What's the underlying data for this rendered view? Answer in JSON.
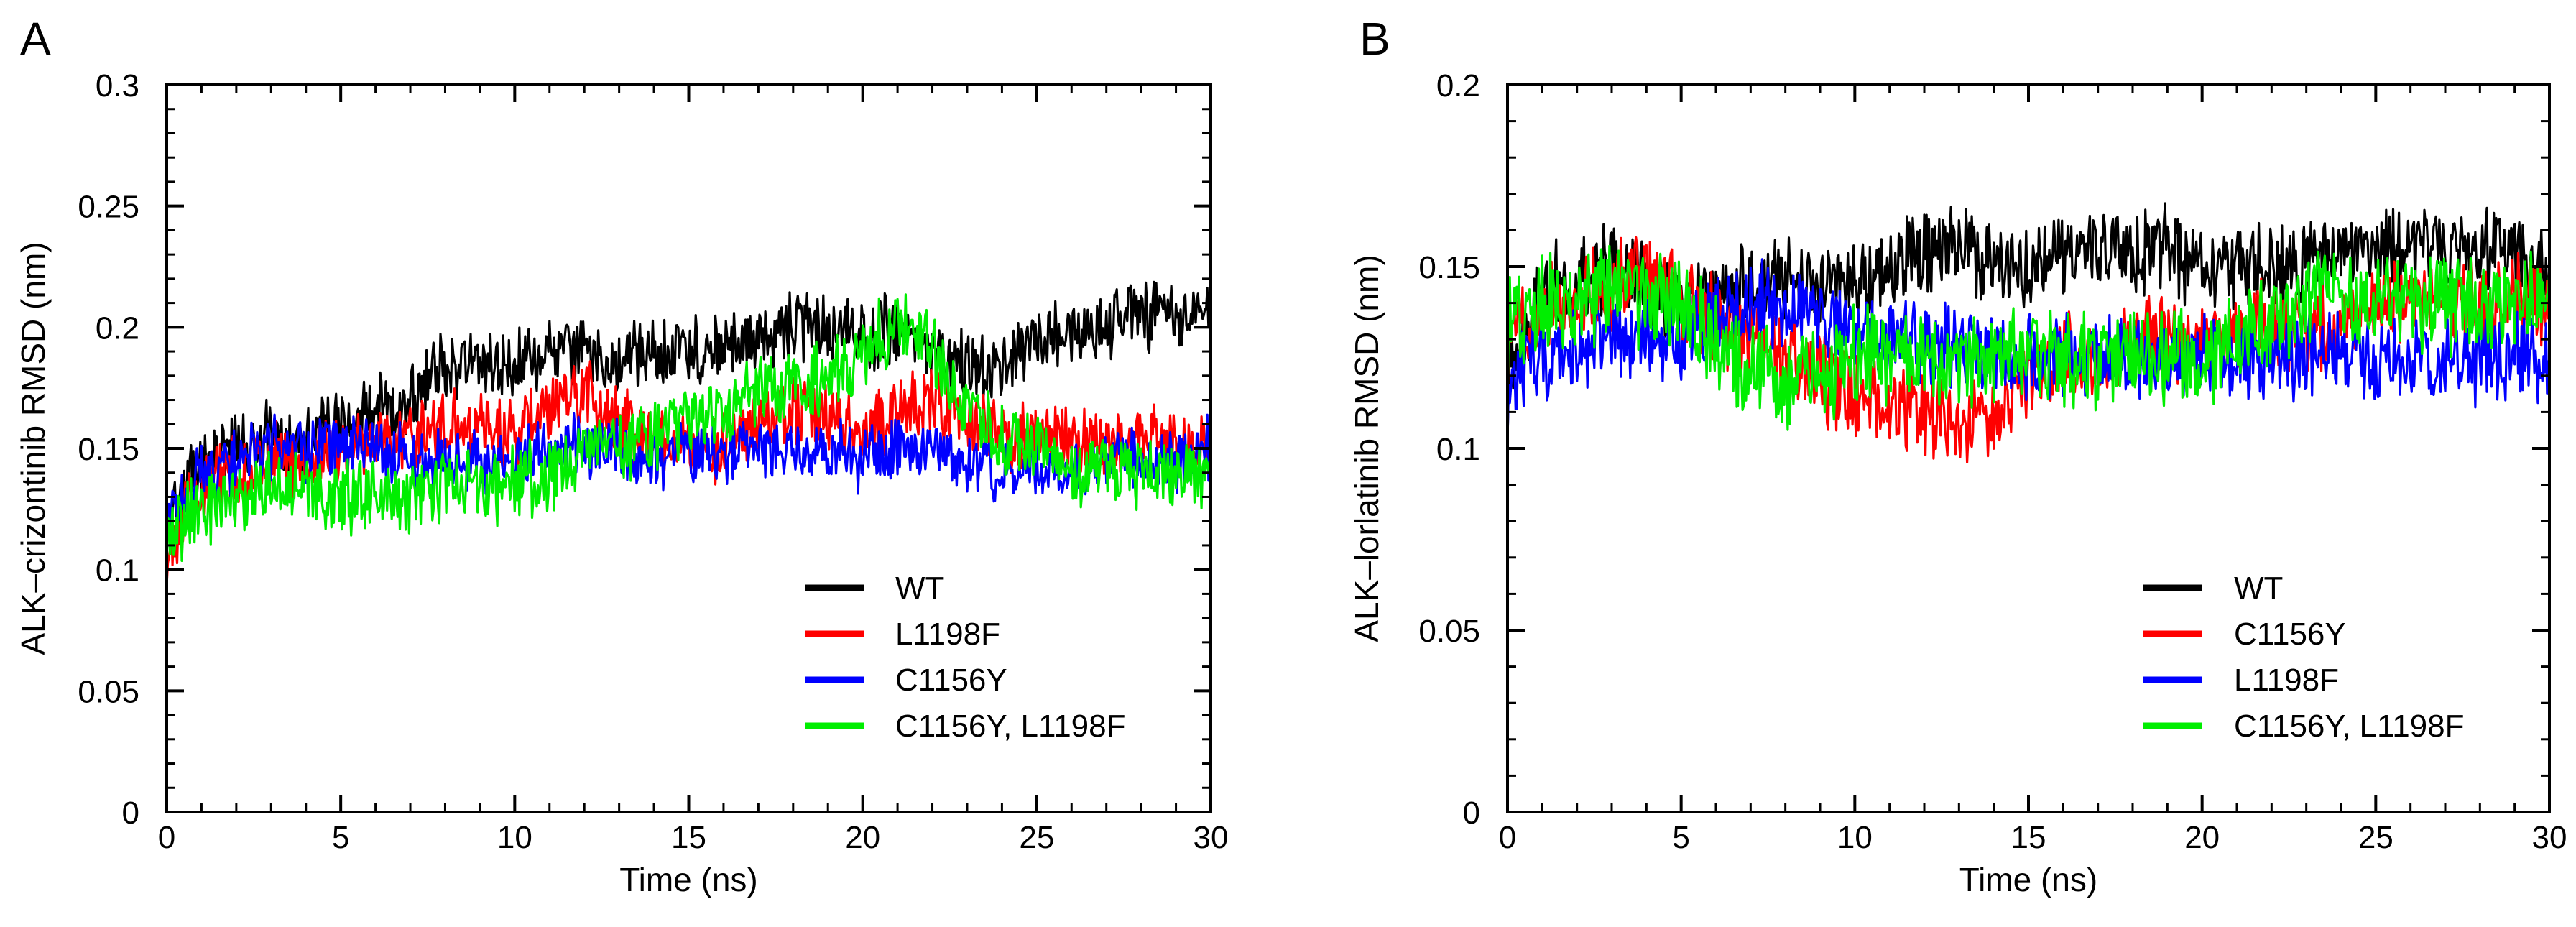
{
  "figure": {
    "colors": {
      "WT": "#000000",
      "L1198F": "#ff0000",
      "C1156Y": "#0000ff",
      "C1156Y, L1198F": "#00ee00"
    }
  },
  "chart_data": [
    {
      "panel": "A",
      "type": "line",
      "xlabel": "Time (ns)",
      "ylabel": "ALK–crizontinib RMSD (nm)",
      "xlim": [
        0,
        30
      ],
      "ylim": [
        0,
        0.3
      ],
      "xticks": [
        0,
        5,
        10,
        15,
        20,
        25,
        30
      ],
      "xtick_labels": [
        "0",
        "5",
        "10",
        "15",
        "20",
        "25",
        "30"
      ],
      "yticks": [
        0,
        0.05,
        0.1,
        0.15,
        0.2,
        0.25,
        0.3
      ],
      "ytick_labels": [
        "0",
        "0.05",
        "0.1",
        "0.15",
        "0.2",
        "0.25",
        "0.3"
      ],
      "legend_position": "bottom-right",
      "x": [
        0,
        1,
        2,
        3,
        4,
        5,
        6,
        7,
        8,
        9,
        10,
        11,
        12,
        13,
        14,
        15,
        16,
        17,
        18,
        19,
        20,
        21,
        22,
        23,
        24,
        25,
        26,
        27,
        28,
        29,
        30
      ],
      "series": [
        {
          "name": "WT",
          "color": "#000000",
          "noise": 0.012,
          "values": [
            0.12,
            0.145,
            0.15,
            0.155,
            0.155,
            0.16,
            0.165,
            0.17,
            0.185,
            0.185,
            0.185,
            0.19,
            0.19,
            0.185,
            0.19,
            0.19,
            0.19,
            0.195,
            0.2,
            0.2,
            0.195,
            0.2,
            0.19,
            0.185,
            0.185,
            0.195,
            0.2,
            0.2,
            0.205,
            0.205,
            0.21
          ]
        },
        {
          "name": "L1198F",
          "color": "#ff0000",
          "noise": 0.012,
          "values": [
            0.11,
            0.135,
            0.14,
            0.145,
            0.145,
            0.15,
            0.155,
            0.155,
            0.16,
            0.16,
            0.155,
            0.165,
            0.175,
            0.16,
            0.155,
            0.15,
            0.15,
            0.16,
            0.165,
            0.165,
            0.155,
            0.165,
            0.17,
            0.16,
            0.155,
            0.155,
            0.155,
            0.15,
            0.155,
            0.15,
            0.15
          ]
        },
        {
          "name": "C1156Y",
          "color": "#0000ff",
          "noise": 0.011,
          "values": [
            0.12,
            0.14,
            0.145,
            0.15,
            0.15,
            0.15,
            0.15,
            0.145,
            0.145,
            0.145,
            0.145,
            0.15,
            0.15,
            0.15,
            0.145,
            0.15,
            0.15,
            0.15,
            0.15,
            0.15,
            0.145,
            0.15,
            0.15,
            0.145,
            0.14,
            0.14,
            0.14,
            0.145,
            0.145,
            0.145,
            0.15
          ]
        },
        {
          "name": "C1156Y, L1198F",
          "color": "#00ee00",
          "noise": 0.013,
          "values": [
            0.115,
            0.125,
            0.13,
            0.135,
            0.135,
            0.13,
            0.13,
            0.13,
            0.135,
            0.135,
            0.135,
            0.14,
            0.15,
            0.15,
            0.155,
            0.165,
            0.165,
            0.175,
            0.175,
            0.18,
            0.19,
            0.2,
            0.19,
            0.165,
            0.155,
            0.15,
            0.14,
            0.145,
            0.14,
            0.14,
            0.14
          ]
        }
      ],
      "legend": [
        "WT",
        "L1198F",
        "C1156Y",
        "C1156Y, L1198F"
      ]
    },
    {
      "panel": "B",
      "type": "line",
      "xlabel": "Time (ns)",
      "ylabel": "ALK–lorlatinib RMSD (nm)",
      "xlim": [
        0,
        30
      ],
      "ylim": [
        0,
        0.2
      ],
      "xticks": [
        0,
        5,
        10,
        15,
        20,
        25,
        30
      ],
      "xtick_labels": [
        "0",
        "5",
        "10",
        "15",
        "20",
        "25",
        "30"
      ],
      "yticks": [
        0,
        0.05,
        0.1,
        0.15,
        0.2
      ],
      "ytick_labels": [
        "0",
        "0.05",
        "0.1",
        "0.15",
        "0.2"
      ],
      "legend_position": "bottom-right",
      "x": [
        0,
        1,
        2,
        3,
        4,
        5,
        6,
        7,
        8,
        9,
        10,
        11,
        12,
        13,
        14,
        15,
        16,
        17,
        18,
        19,
        20,
        21,
        22,
        23,
        24,
        25,
        26,
        27,
        28,
        29,
        30
      ],
      "series": [
        {
          "name": "WT",
          "color": "#000000",
          "noise": 0.01,
          "values": [
            0.12,
            0.145,
            0.145,
            0.15,
            0.145,
            0.14,
            0.14,
            0.145,
            0.145,
            0.145,
            0.145,
            0.15,
            0.155,
            0.155,
            0.15,
            0.15,
            0.15,
            0.155,
            0.155,
            0.155,
            0.15,
            0.15,
            0.15,
            0.15,
            0.155,
            0.155,
            0.155,
            0.155,
            0.155,
            0.155,
            0.15
          ]
        },
        {
          "name": "C1156Y",
          "color": "#ff0000",
          "noise": 0.01,
          "values": [
            0.13,
            0.14,
            0.14,
            0.145,
            0.15,
            0.14,
            0.135,
            0.13,
            0.125,
            0.12,
            0.115,
            0.11,
            0.11,
            0.105,
            0.11,
            0.12,
            0.125,
            0.125,
            0.13,
            0.13,
            0.13,
            0.13,
            0.135,
            0.13,
            0.135,
            0.14,
            0.14,
            0.14,
            0.14,
            0.14,
            0.14
          ]
        },
        {
          "name": "L1198F",
          "color": "#0000ff",
          "noise": 0.01,
          "values": [
            0.12,
            0.125,
            0.125,
            0.13,
            0.13,
            0.13,
            0.135,
            0.14,
            0.14,
            0.135,
            0.13,
            0.13,
            0.13,
            0.13,
            0.125,
            0.125,
            0.125,
            0.125,
            0.125,
            0.125,
            0.125,
            0.125,
            0.125,
            0.125,
            0.125,
            0.125,
            0.125,
            0.125,
            0.125,
            0.125,
            0.125
          ]
        },
        {
          "name": "C1156Y, L1198F",
          "color": "#00ee00",
          "noise": 0.011,
          "values": [
            0.135,
            0.14,
            0.14,
            0.145,
            0.14,
            0.14,
            0.13,
            0.12,
            0.12,
            0.12,
            0.125,
            0.125,
            0.125,
            0.125,
            0.125,
            0.125,
            0.125,
            0.125,
            0.125,
            0.125,
            0.125,
            0.13,
            0.135,
            0.14,
            0.14,
            0.14,
            0.14,
            0.14,
            0.14,
            0.14,
            0.14
          ]
        }
      ],
      "legend": [
        "WT",
        "C1156Y",
        "L1198F",
        "C1156Y, L1198F"
      ]
    }
  ]
}
